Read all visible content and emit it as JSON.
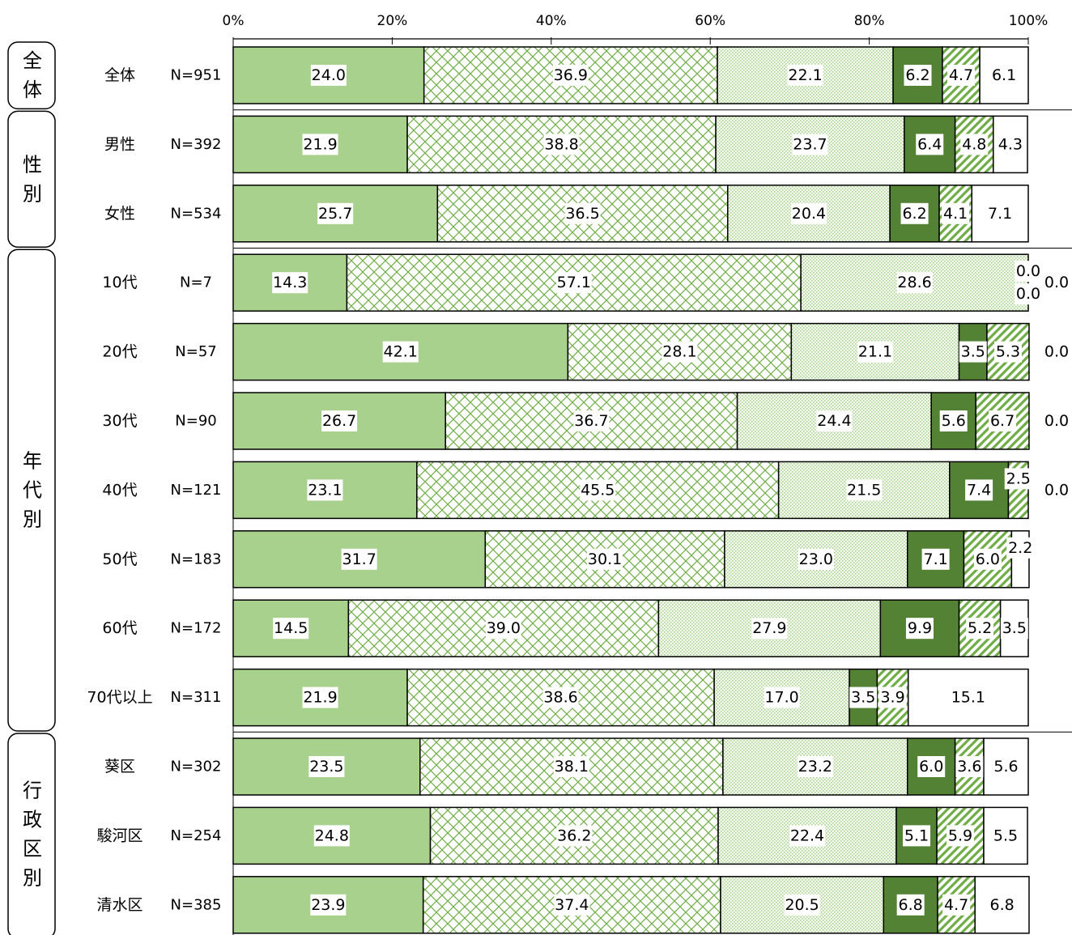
{
  "chart_data": {
    "type": "stacked-bar-100",
    "title": "",
    "xlabel": "",
    "ylabel": "",
    "xlim": [
      0,
      100
    ],
    "x_ticks": [
      "0%",
      "20%",
      "40%",
      "60%",
      "80%",
      "100%"
    ],
    "grid": false,
    "legend": "none",
    "segment_styles": [
      {
        "fill": "#a9d18e",
        "pattern": "solid"
      },
      {
        "fill": "#ffffff",
        "pattern": "crosshatch",
        "color": "#70ad47"
      },
      {
        "fill": "#ffffff",
        "pattern": "dots",
        "color": "#a9d18e"
      },
      {
        "fill": "#548235",
        "pattern": "solid"
      },
      {
        "fill": "#ffffff",
        "pattern": "diagonal",
        "color": "#70ad47"
      },
      {
        "fill": "#ffffff",
        "pattern": "none"
      }
    ],
    "groups": [
      {
        "label": "全体",
        "rows": [
          {
            "label": "全体",
            "n": "N=951",
            "values": [
              24.0,
              36.9,
              22.1,
              6.2,
              4.7,
              6.1
            ]
          }
        ]
      },
      {
        "label": "性別",
        "rows": [
          {
            "label": "男性",
            "n": "N=392",
            "values": [
              21.9,
              38.8,
              23.7,
              6.4,
              4.8,
              4.3
            ]
          },
          {
            "label": "女性",
            "n": "N=534",
            "values": [
              25.7,
              36.5,
              20.4,
              6.2,
              4.1,
              7.1
            ]
          }
        ]
      },
      {
        "label": "年代別",
        "rows": [
          {
            "label": "10代",
            "n": "N=7",
            "values": [
              14.3,
              57.1,
              28.6,
              0.0,
              0.0,
              0.0
            ]
          },
          {
            "label": "20代",
            "n": "N=57",
            "values": [
              42.1,
              28.1,
              21.1,
              3.5,
              5.3,
              0.0
            ]
          },
          {
            "label": "30代",
            "n": "N=90",
            "values": [
              26.7,
              36.7,
              24.4,
              5.6,
              6.7,
              0.0
            ]
          },
          {
            "label": "40代",
            "n": "N=121",
            "values": [
              23.1,
              45.5,
              21.5,
              7.4,
              2.5,
              0.0
            ]
          },
          {
            "label": "50代",
            "n": "N=183",
            "values": [
              31.7,
              30.1,
              23.0,
              7.1,
              6.0,
              2.2
            ]
          },
          {
            "label": "60代",
            "n": "N=172",
            "values": [
              14.5,
              39.0,
              27.9,
              9.9,
              5.2,
              3.5
            ]
          },
          {
            "label": "70代以上",
            "n": "N=311",
            "values": [
              21.9,
              38.6,
              17.0,
              3.5,
              3.9,
              15.1
            ]
          }
        ]
      },
      {
        "label": "行政区別",
        "rows": [
          {
            "label": "葵区",
            "n": "N=302",
            "values": [
              23.5,
              38.1,
              23.2,
              6.0,
              3.6,
              5.6
            ]
          },
          {
            "label": "駿河区",
            "n": "N=254",
            "values": [
              24.8,
              36.2,
              22.4,
              5.1,
              5.9,
              5.5
            ]
          },
          {
            "label": "清水区",
            "n": "N=385",
            "values": [
              23.9,
              37.4,
              20.5,
              6.8,
              4.7,
              6.8
            ]
          }
        ]
      }
    ]
  }
}
